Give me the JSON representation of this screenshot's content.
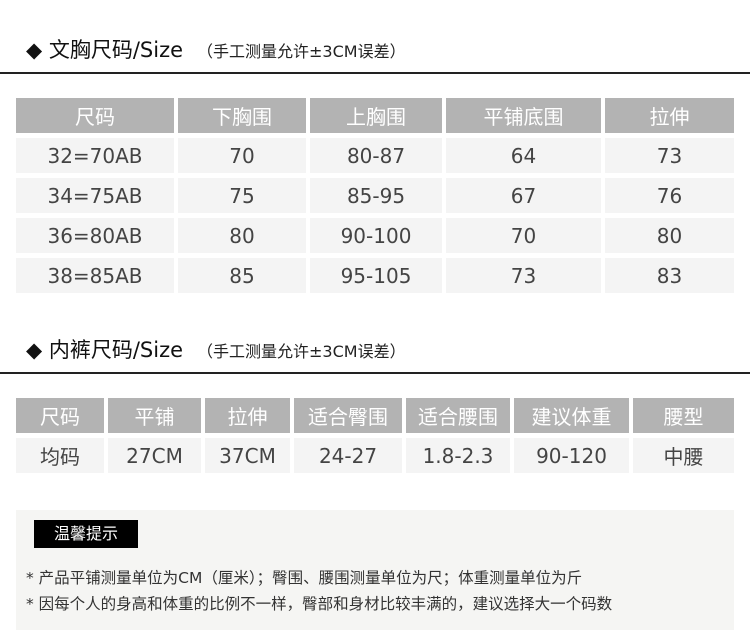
{
  "bra": {
    "title": "◆ 文胸尺码/Size",
    "note": "（手工测量允许±3CM误差）",
    "headers": [
      "尺码",
      "下胸围",
      "上胸围",
      "平铺底围",
      "拉伸"
    ],
    "rows": [
      [
        "32=70AB",
        "70",
        "80-87",
        "64",
        "73"
      ],
      [
        "34=75AB",
        "75",
        "85-95",
        "67",
        "76"
      ],
      [
        "36=80AB",
        "80",
        "90-100",
        "70",
        "80"
      ],
      [
        "38=85AB",
        "85",
        "95-105",
        "73",
        "83"
      ]
    ]
  },
  "panty": {
    "title": "◆ 内裤尺码/Size",
    "note": "（手工测量允许±3CM误差）",
    "headers": [
      "尺码",
      "平铺",
      "拉伸",
      "适合臀围",
      "适合腰围",
      "建议体重",
      "腰型"
    ],
    "rows": [
      [
        "均码",
        "27CM",
        "37CM",
        "24-27",
        "1.8-2.3",
        "90-120",
        "中腰"
      ]
    ]
  },
  "tips": {
    "label": "温馨提示",
    "lines": [
      "* 产品平铺测量单位为CM（厘米）；臀围、腰围测量单位为尺；体重测量单位为斤",
      "* 因每个人的身高和体重的比例不一样，臀部和身材比较丰满的，建议选择大一个码数"
    ]
  }
}
